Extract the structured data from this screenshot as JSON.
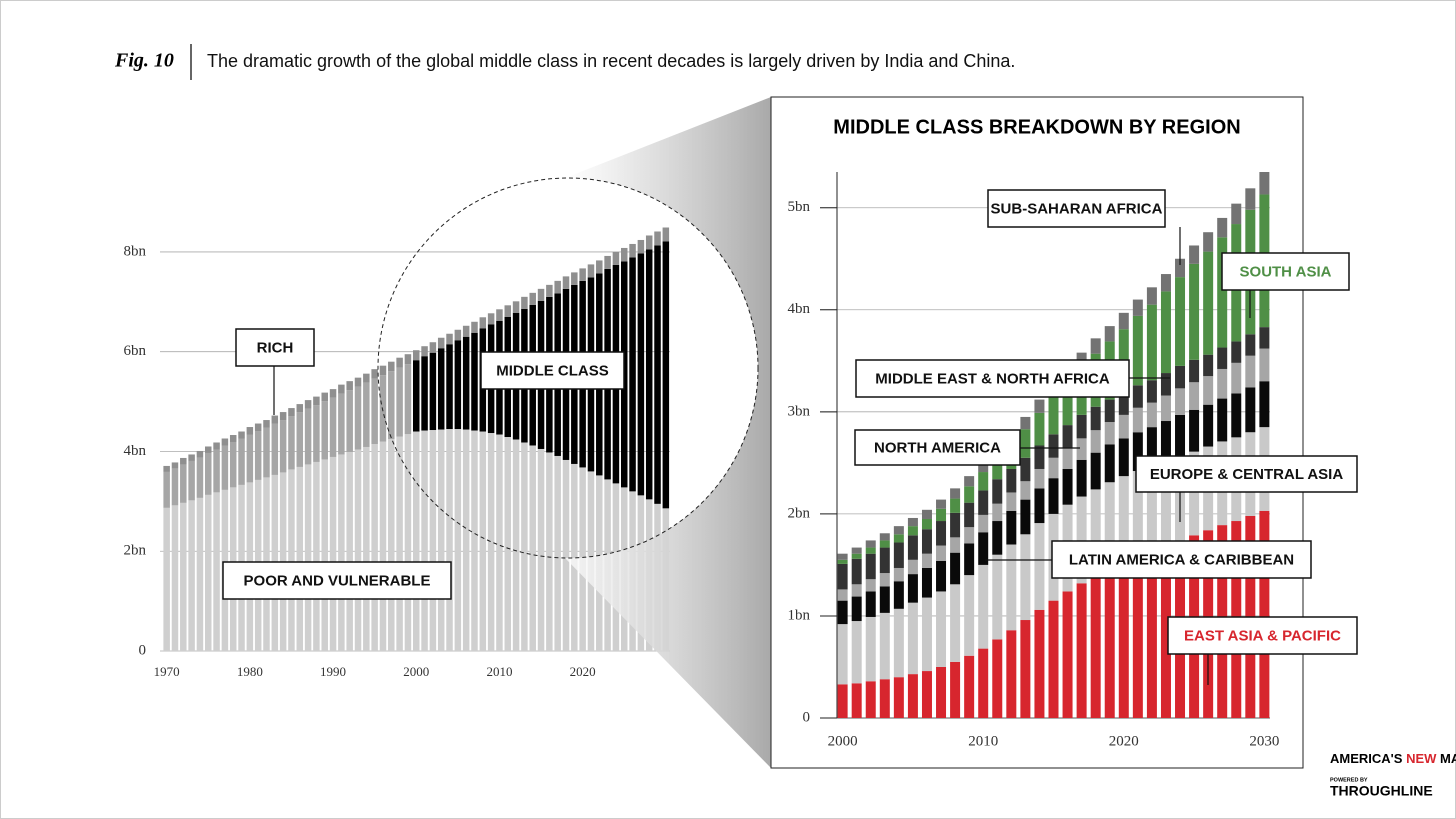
{
  "header": {
    "figure": "Fig. 10",
    "subtitle": "The dramatic growth of the global middle class in recent decades is largely driven by India and China."
  },
  "chart_data": [
    {
      "type": "stacked_bar",
      "x": [
        1970,
        1971,
        1972,
        1973,
        1974,
        1975,
        1976,
        1977,
        1978,
        1979,
        1980,
        1981,
        1982,
        1983,
        1984,
        1985,
        1986,
        1987,
        1988,
        1989,
        1990,
        1991,
        1992,
        1993,
        1994,
        1995,
        1996,
        1997,
        1998,
        1999,
        2000,
        2001,
        2002,
        2003,
        2004,
        2005,
        2006,
        2007,
        2008,
        2009,
        2010,
        2011,
        2012,
        2013,
        2014,
        2015,
        2016,
        2017,
        2018,
        2019,
        2020,
        2021,
        2022,
        2023,
        2024,
        2025,
        2026,
        2027,
        2028,
        2029,
        2030
      ],
      "xlim": [
        1969.2,
        2030.5
      ],
      "xticks": [
        1970,
        1980,
        1990,
        2000,
        2010,
        2020
      ],
      "ylim": [
        0,
        8.5
      ],
      "yticks": [
        0,
        {
          "value": 2,
          "label": "2bn"
        },
        {
          "value": 4,
          "label": "4bn"
        },
        {
          "value": 6,
          "label": "6bn"
        },
        {
          "value": 8,
          "label": "8bn"
        }
      ],
      "grid": true,
      "highlight_from": 2000,
      "series": [
        {
          "name": "POOR AND VULNERABLE",
          "color": "#cfcfcf",
          "values": [
            2.87,
            2.92,
            2.97,
            3.02,
            3.07,
            3.13,
            3.18,
            3.23,
            3.28,
            3.33,
            3.38,
            3.43,
            3.48,
            3.53,
            3.58,
            3.64,
            3.69,
            3.74,
            3.79,
            3.84,
            3.89,
            3.94,
            3.99,
            4.04,
            4.09,
            4.15,
            4.2,
            4.25,
            4.3,
            4.35,
            4.4,
            4.42,
            4.43,
            4.44,
            4.45,
            4.45,
            4.44,
            4.42,
            4.4,
            4.37,
            4.34,
            4.29,
            4.24,
            4.18,
            4.12,
            4.05,
            3.98,
            3.91,
            3.83,
            3.75,
            3.68,
            3.6,
            3.52,
            3.44,
            3.36,
            3.28,
            3.2,
            3.12,
            3.04,
            2.95,
            2.86
          ]
        },
        {
          "name": "MIDDLE CLASS",
          "color": "#000000",
          "muted_color": "#a6a6a6",
          "values": [
            0.72,
            0.74,
            0.77,
            0.79,
            0.81,
            0.84,
            0.86,
            0.89,
            0.91,
            0.93,
            0.96,
            0.98,
            1.0,
            1.03,
            1.05,
            1.07,
            1.1,
            1.12,
            1.14,
            1.17,
            1.19,
            1.22,
            1.24,
            1.26,
            1.29,
            1.31,
            1.33,
            1.36,
            1.38,
            1.4,
            1.43,
            1.49,
            1.55,
            1.63,
            1.7,
            1.78,
            1.86,
            1.96,
            2.07,
            2.18,
            2.28,
            2.41,
            2.54,
            2.68,
            2.82,
            2.97,
            3.12,
            3.26,
            3.43,
            3.59,
            3.74,
            3.89,
            4.05,
            4.22,
            4.38,
            4.53,
            4.69,
            4.85,
            5.01,
            5.18,
            5.35
          ]
        },
        {
          "name": "RICH",
          "color": "#8f8f8f",
          "values": [
            0.12,
            0.12,
            0.13,
            0.13,
            0.13,
            0.13,
            0.14,
            0.14,
            0.14,
            0.14,
            0.15,
            0.15,
            0.15,
            0.16,
            0.16,
            0.16,
            0.16,
            0.17,
            0.17,
            0.17,
            0.17,
            0.18,
            0.18,
            0.18,
            0.18,
            0.19,
            0.19,
            0.19,
            0.2,
            0.2,
            0.2,
            0.2,
            0.21,
            0.21,
            0.21,
            0.21,
            0.22,
            0.22,
            0.22,
            0.22,
            0.23,
            0.23,
            0.23,
            0.24,
            0.24,
            0.24,
            0.24,
            0.25,
            0.25,
            0.25,
            0.25,
            0.26,
            0.26,
            0.26,
            0.26,
            0.27,
            0.27,
            0.27,
            0.28,
            0.28,
            0.28
          ]
        }
      ]
    },
    {
      "type": "stacked_bar",
      "title": "MIDDLE CLASS BREAKDOWN BY REGION",
      "x": [
        2000,
        2001,
        2002,
        2003,
        2004,
        2005,
        2006,
        2007,
        2008,
        2009,
        2010,
        2011,
        2012,
        2013,
        2014,
        2015,
        2016,
        2017,
        2018,
        2019,
        2020,
        2021,
        2022,
        2023,
        2024,
        2025,
        2026,
        2027,
        2028,
        2029,
        2030
      ],
      "xlim": [
        1999.6,
        2030.4
      ],
      "xticks": [
        2000,
        2010,
        2020,
        2030
      ],
      "ylim": [
        0,
        5.35
      ],
      "yticks": [
        0,
        {
          "value": 1,
          "label": "1bn"
        },
        {
          "value": 2,
          "label": "2bn"
        },
        {
          "value": 3,
          "label": "3bn"
        },
        {
          "value": 4,
          "label": "4bn"
        },
        {
          "value": 5,
          "label": "5bn"
        }
      ],
      "grid": true,
      "series": [
        {
          "name": "EAST ASIA & PACIFIC",
          "color": "#d7262e",
          "values": [
            0.33,
            0.34,
            0.36,
            0.38,
            0.4,
            0.43,
            0.46,
            0.5,
            0.55,
            0.61,
            0.68,
            0.77,
            0.86,
            0.96,
            1.06,
            1.15,
            1.24,
            1.32,
            1.4,
            1.47,
            1.53,
            1.59,
            1.64,
            1.69,
            1.74,
            1.79,
            1.84,
            1.89,
            1.93,
            1.98,
            2.03
          ]
        },
        {
          "name": "EUROPE & CENTRAL ASIA",
          "color": "#c9c9c9",
          "values": [
            0.59,
            0.61,
            0.63,
            0.65,
            0.67,
            0.7,
            0.72,
            0.74,
            0.76,
            0.79,
            0.82,
            0.83,
            0.84,
            0.84,
            0.85,
            0.85,
            0.85,
            0.85,
            0.84,
            0.84,
            0.84,
            0.83,
            0.83,
            0.83,
            0.83,
            0.82,
            0.82,
            0.82,
            0.82,
            0.82,
            0.82
          ]
        },
        {
          "name": "LATIN AMERICA & CARIBBEAN",
          "color": "#0a0a0a",
          "values": [
            0.23,
            0.24,
            0.25,
            0.26,
            0.27,
            0.28,
            0.29,
            0.3,
            0.31,
            0.31,
            0.32,
            0.33,
            0.33,
            0.34,
            0.34,
            0.35,
            0.35,
            0.36,
            0.36,
            0.37,
            0.37,
            0.38,
            0.38,
            0.39,
            0.4,
            0.41,
            0.41,
            0.42,
            0.43,
            0.44,
            0.45
          ]
        },
        {
          "name": "NORTH AMERICA",
          "color": "#a6a6a6",
          "values": [
            0.11,
            0.12,
            0.12,
            0.13,
            0.13,
            0.14,
            0.14,
            0.15,
            0.15,
            0.16,
            0.17,
            0.17,
            0.18,
            0.18,
            0.19,
            0.2,
            0.2,
            0.21,
            0.22,
            0.22,
            0.23,
            0.24,
            0.24,
            0.25,
            0.26,
            0.27,
            0.28,
            0.29,
            0.3,
            0.31,
            0.32
          ]
        },
        {
          "name": "MIDDLE EAST & NORTH AFRICA",
          "color": "#333333",
          "values": [
            0.25,
            0.25,
            0.25,
            0.25,
            0.25,
            0.24,
            0.24,
            0.24,
            0.24,
            0.24,
            0.24,
            0.24,
            0.23,
            0.23,
            0.23,
            0.23,
            0.23,
            0.23,
            0.23,
            0.22,
            0.22,
            0.22,
            0.22,
            0.22,
            0.22,
            0.22,
            0.21,
            0.21,
            0.21,
            0.21,
            0.21
          ]
        },
        {
          "name": "SOUTH ASIA",
          "color": "#4f8f46",
          "values": [
            0.04,
            0.05,
            0.06,
            0.07,
            0.08,
            0.09,
            0.1,
            0.12,
            0.14,
            0.16,
            0.18,
            0.21,
            0.24,
            0.28,
            0.32,
            0.37,
            0.42,
            0.47,
            0.52,
            0.57,
            0.62,
            0.68,
            0.74,
            0.8,
            0.87,
            0.94,
            1.01,
            1.08,
            1.15,
            1.22,
            1.3
          ]
        },
        {
          "name": "SUB-SAHARAN AFRICA",
          "color": "#737373",
          "values": [
            0.06,
            0.06,
            0.07,
            0.07,
            0.08,
            0.08,
            0.09,
            0.09,
            0.1,
            0.1,
            0.11,
            0.11,
            0.12,
            0.12,
            0.13,
            0.13,
            0.14,
            0.14,
            0.15,
            0.15,
            0.16,
            0.16,
            0.17,
            0.17,
            0.18,
            0.18,
            0.19,
            0.19,
            0.2,
            0.21,
            0.22
          ]
        }
      ]
    }
  ],
  "logo": {
    "word_1": "AMERICA'S",
    "word_2": "NEW",
    "word_3": "MAP",
    "powered": "POWERED BY",
    "brand": "THROUGHLINE"
  }
}
